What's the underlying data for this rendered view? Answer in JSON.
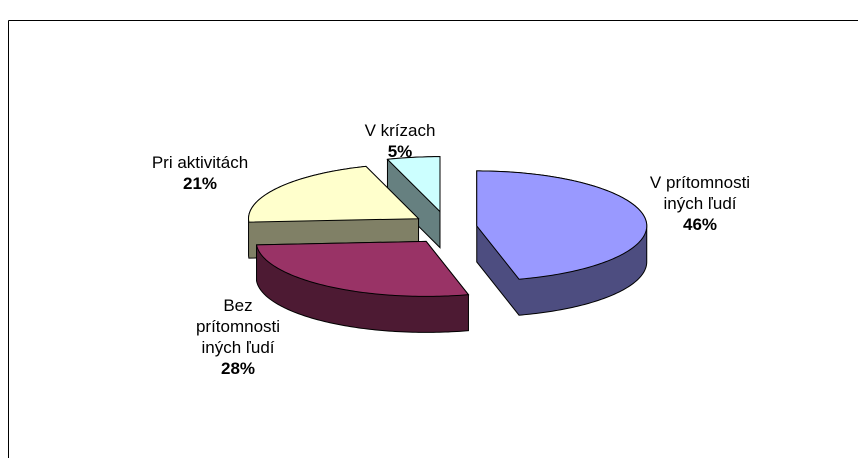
{
  "chart_data": {
    "type": "pie",
    "categories": [
      "V prítomnosti iných ľudí",
      "Bez prítomnosti iných ľudí",
      "Pri aktivitách",
      "V krízach"
    ],
    "values": [
      46,
      28,
      21,
      5
    ],
    "value_labels": [
      "46%",
      "28%",
      "21%",
      "5%"
    ],
    "colors": [
      "#9999ff",
      "#993366",
      "#ffffcc",
      "#ccffff"
    ]
  }
}
